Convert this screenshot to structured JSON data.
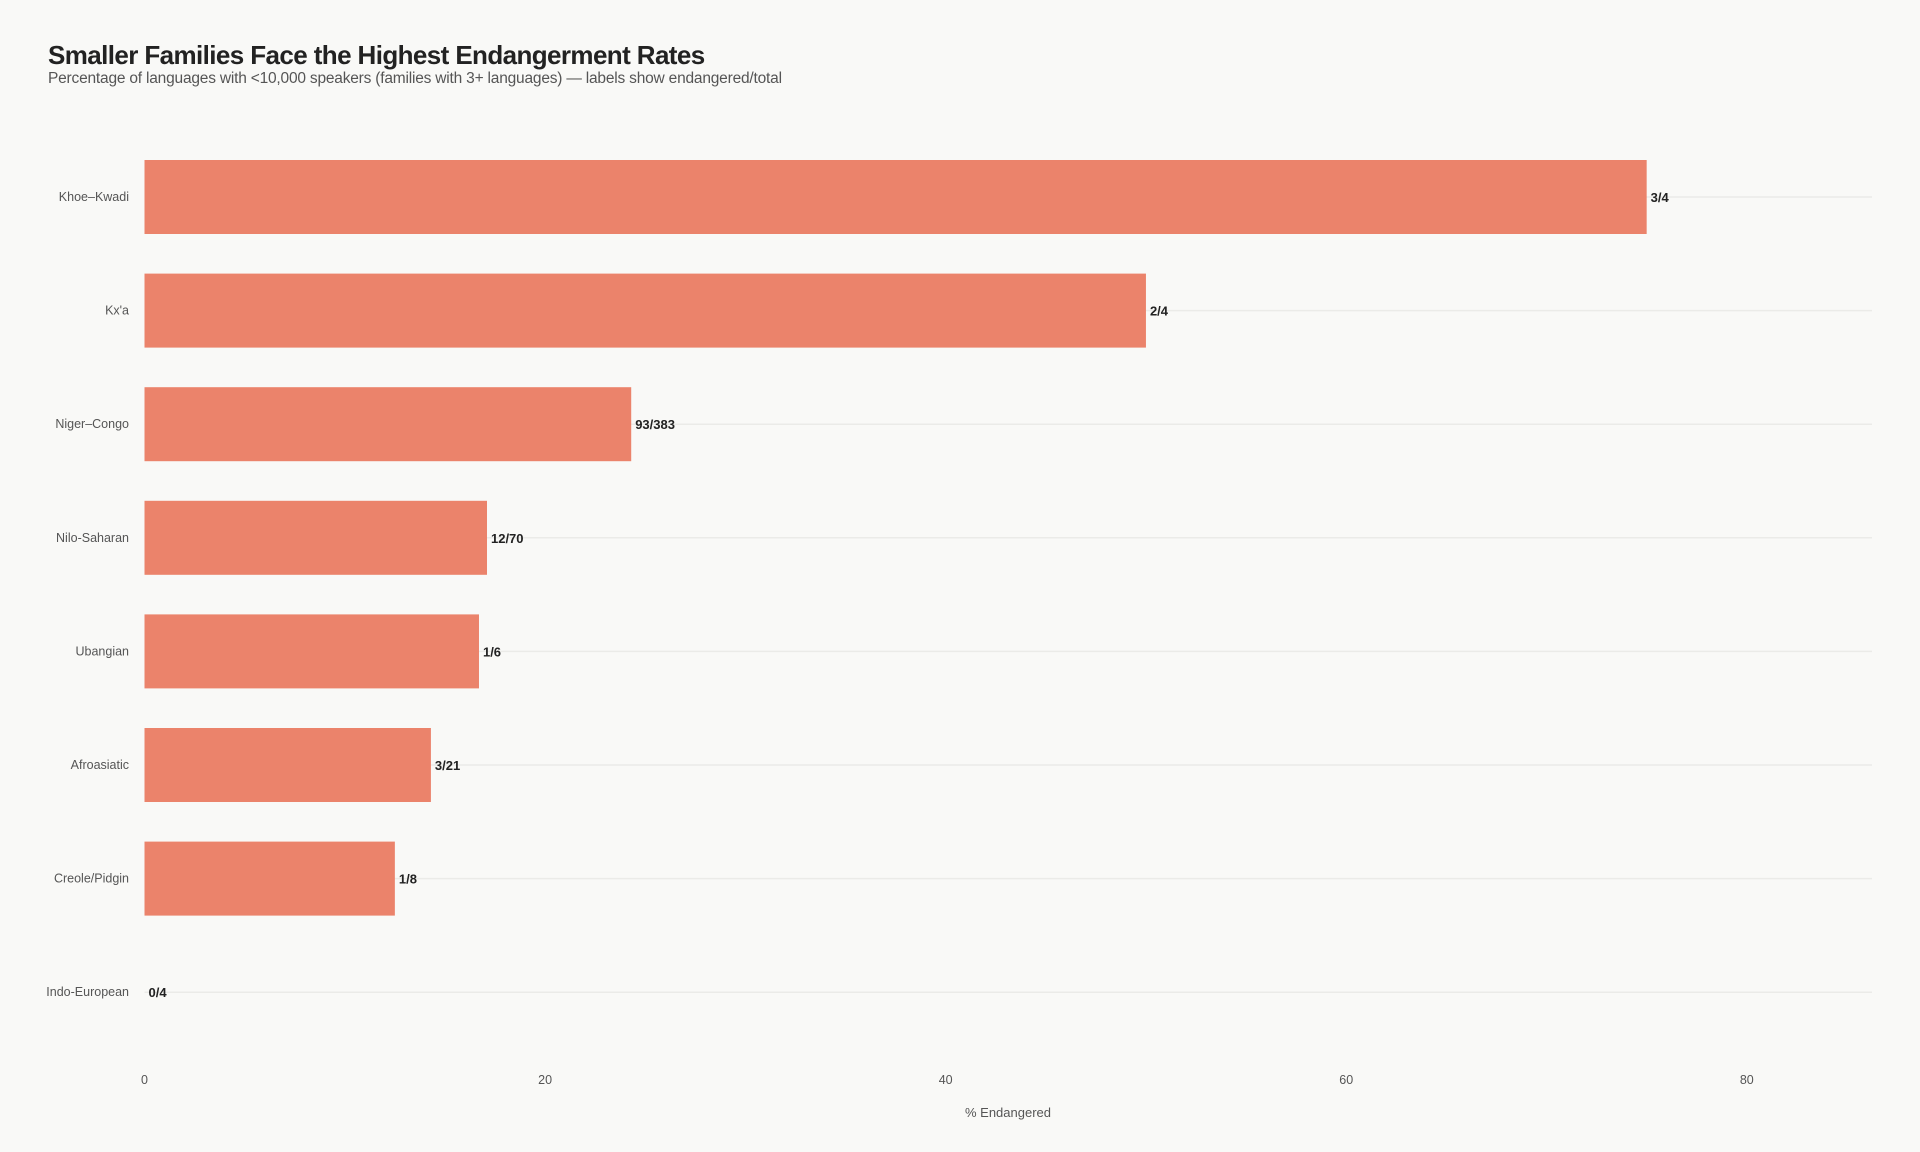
{
  "chart_data": {
    "type": "bar",
    "orientation": "horizontal",
    "title": "Smaller Families Face the Highest Endangerment Rates",
    "subtitle": "Percentage of languages with <10,000 speakers (families with 3+ languages) — labels show endangered/total",
    "xlabel": "% Endangered",
    "ylabel": "",
    "xlim": [
      0,
      86.25
    ],
    "xticks": [
      0,
      20,
      40,
      60,
      80
    ],
    "grid": "horizontal lines per category",
    "bar_color": "#eb836b",
    "background": "#f9f9f7",
    "categories": [
      "Khoe–Kwadi",
      "Kx'a",
      "Niger–Congo",
      "Nilo-Saharan",
      "Ubangian",
      "Afroasiatic",
      "Creole/Pidgin",
      "Indo-European"
    ],
    "values": [
      75.0,
      50.0,
      24.3,
      17.1,
      16.7,
      14.3,
      12.5,
      0.0
    ],
    "labels": [
      "3/4",
      "2/4",
      "93/383",
      "12/70",
      "1/6",
      "3/21",
      "1/8",
      "0/4"
    ]
  }
}
